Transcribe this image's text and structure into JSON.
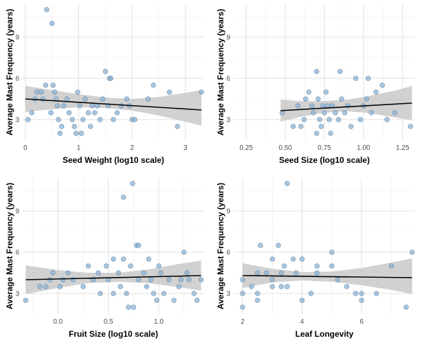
{
  "colors": {
    "point_fill": "#8fb3d1",
    "point_stroke": "#5d88ad",
    "ribbon": "#c9c9c9",
    "line": "#000000",
    "grid": "#d9d9d9"
  },
  "chart_data": [
    {
      "type": "scatter",
      "xlabel": "Seed Weight (log10 scale)",
      "ylabel": "Average Mast Frequency (years)",
      "xlim": [
        -0.05,
        3.35
      ],
      "ylim": [
        1.5,
        11.4
      ],
      "xticks": [
        0,
        1,
        2,
        3
      ],
      "yticks": [
        3,
        6,
        9
      ],
      "grid": true,
      "points": [
        [
          0.05,
          3.0
        ],
        [
          0.12,
          3.5
        ],
        [
          0.18,
          4.5
        ],
        [
          0.22,
          5.0
        ],
        [
          0.3,
          5.0
        ],
        [
          0.33,
          4.5
        ],
        [
          0.38,
          5.5
        ],
        [
          0.4,
          11.0
        ],
        [
          0.48,
          3.5
        ],
        [
          0.5,
          10.0
        ],
        [
          0.52,
          5.5
        ],
        [
          0.55,
          5.0
        ],
        [
          0.58,
          4.5
        ],
        [
          0.6,
          4.0
        ],
        [
          0.62,
          3.0
        ],
        [
          0.65,
          2.0
        ],
        [
          0.68,
          2.5
        ],
        [
          0.72,
          4.0
        ],
        [
          0.78,
          4.5
        ],
        [
          0.82,
          3.5
        ],
        [
          0.88,
          3.0
        ],
        [
          0.92,
          2.5
        ],
        [
          0.95,
          2.0
        ],
        [
          0.98,
          5.0
        ],
        [
          1.02,
          4.0
        ],
        [
          1.05,
          2.0
        ],
        [
          1.08,
          3.0
        ],
        [
          1.12,
          4.5
        ],
        [
          1.18,
          3.5
        ],
        [
          1.22,
          2.5
        ],
        [
          1.25,
          4.0
        ],
        [
          1.3,
          3.5
        ],
        [
          1.35,
          4.0
        ],
        [
          1.4,
          3.0
        ],
        [
          1.45,
          4.5
        ],
        [
          1.5,
          6.5
        ],
        [
          1.55,
          4.0
        ],
        [
          1.58,
          6.0
        ],
        [
          1.6,
          6.0
        ],
        [
          1.65,
          3.0
        ],
        [
          1.72,
          3.5
        ],
        [
          1.8,
          4.0
        ],
        [
          1.9,
          4.5
        ],
        [
          1.95,
          4.0
        ],
        [
          2.0,
          3.0
        ],
        [
          2.05,
          3.0
        ],
        [
          2.3,
          4.5
        ],
        [
          2.4,
          5.5
        ],
        [
          2.7,
          5.0
        ],
        [
          2.85,
          2.5
        ],
        [
          3.3,
          5.0
        ]
      ],
      "fit": {
        "x": [
          0.0,
          3.3
        ],
        "y": [
          4.5,
          3.7
        ]
      },
      "band": {
        "x": [
          0.0,
          0.5,
          1.0,
          1.5,
          2.0,
          2.5,
          3.0,
          3.3
        ],
        "lower": [
          3.55,
          3.75,
          3.9,
          3.85,
          3.65,
          3.3,
          2.85,
          2.55
        ],
        "upper": [
          5.45,
          5.15,
          4.85,
          4.6,
          4.5,
          4.65,
          4.95,
          5.15
        ]
      }
    },
    {
      "type": "scatter",
      "xlabel": "Seed Size (log10 scale)",
      "ylabel": "Average Mast Frequency (years)",
      "xlim": [
        0.17,
        1.33
      ],
      "ylim": [
        1.5,
        11.4
      ],
      "xticks": [
        0.25,
        0.5,
        0.75,
        1.0,
        1.25
      ],
      "xticklabels": [
        "0.25",
        "0.50",
        "0.75",
        "1.00",
        "1.25"
      ],
      "yticks": [
        3,
        6,
        9
      ],
      "grid": true,
      "points": [
        [
          0.48,
          3.5
        ],
        [
          0.55,
          2.5
        ],
        [
          0.58,
          4.0
        ],
        [
          0.6,
          2.5
        ],
        [
          0.62,
          3.0
        ],
        [
          0.63,
          4.5
        ],
        [
          0.65,
          5.0
        ],
        [
          0.67,
          4.0
        ],
        [
          0.68,
          3.5
        ],
        [
          0.7,
          2.0
        ],
        [
          0.7,
          6.5
        ],
        [
          0.71,
          4.5
        ],
        [
          0.72,
          3.0
        ],
        [
          0.73,
          2.5
        ],
        [
          0.74,
          4.0
        ],
        [
          0.75,
          3.5
        ],
        [
          0.76,
          5.0
        ],
        [
          0.77,
          4.0
        ],
        [
          0.78,
          3.0
        ],
        [
          0.79,
          2.0
        ],
        [
          0.8,
          4.0
        ],
        [
          0.82,
          3.5
        ],
        [
          0.84,
          3.0
        ],
        [
          0.85,
          6.5
        ],
        [
          0.86,
          4.5
        ],
        [
          0.88,
          3.5
        ],
        [
          0.9,
          4.0
        ],
        [
          0.92,
          2.5
        ],
        [
          0.95,
          6.0
        ],
        [
          0.98,
          3.0
        ],
        [
          1.0,
          4.0
        ],
        [
          1.02,
          4.5
        ],
        [
          1.03,
          6.0
        ],
        [
          1.05,
          3.5
        ],
        [
          1.08,
          5.0
        ],
        [
          1.12,
          5.5
        ],
        [
          1.15,
          3.0
        ],
        [
          1.2,
          3.5
        ],
        [
          1.3,
          2.5
        ]
      ],
      "fit": {
        "x": [
          0.47,
          1.31
        ],
        "y": [
          3.65,
          4.2
        ]
      },
      "band": {
        "x": [
          0.47,
          0.6,
          0.75,
          0.9,
          1.05,
          1.2,
          1.31
        ],
        "lower": [
          2.85,
          3.2,
          3.5,
          3.6,
          3.45,
          3.15,
          2.95
        ],
        "upper": [
          4.45,
          4.35,
          4.35,
          4.45,
          4.75,
          5.1,
          5.45
        ]
      }
    },
    {
      "type": "scatter",
      "xlabel": "Fruit Size (log10 scale)",
      "ylabel": "Average Mast Frequency (years)",
      "xlim": [
        -0.35,
        1.45
      ],
      "ylim": [
        1.5,
        11.4
      ],
      "xticks": [
        0.0,
        0.5,
        1.0
      ],
      "xticklabels": [
        "0.0",
        "0.5",
        "1.0"
      ],
      "yticks": [
        3,
        6,
        9
      ],
      "grid": true,
      "points": [
        [
          -0.32,
          2.5
        ],
        [
          -0.18,
          3.5
        ],
        [
          -0.12,
          3.5
        ],
        [
          -0.08,
          4.0
        ],
        [
          -0.05,
          4.5
        ],
        [
          0.02,
          3.5
        ],
        [
          0.05,
          4.0
        ],
        [
          0.1,
          4.5
        ],
        [
          0.15,
          4.0
        ],
        [
          0.25,
          3.5
        ],
        [
          0.3,
          5.0
        ],
        [
          0.35,
          4.0
        ],
        [
          0.4,
          4.5
        ],
        [
          0.42,
          3.0
        ],
        [
          0.48,
          5.0
        ],
        [
          0.5,
          4.0
        ],
        [
          0.55,
          3.0
        ],
        [
          0.55,
          5.5
        ],
        [
          0.6,
          4.5
        ],
        [
          0.62,
          3.5
        ],
        [
          0.65,
          5.5
        ],
        [
          0.65,
          10.0
        ],
        [
          0.68,
          3.0
        ],
        [
          0.7,
          2.0
        ],
        [
          0.72,
          5.0
        ],
        [
          0.74,
          11.0
        ],
        [
          0.75,
          2.0
        ],
        [
          0.78,
          6.5
        ],
        [
          0.8,
          6.5
        ],
        [
          0.8,
          4.0
        ],
        [
          0.85,
          4.5
        ],
        [
          0.88,
          3.5
        ],
        [
          0.9,
          5.5
        ],
        [
          0.92,
          4.0
        ],
        [
          0.95,
          3.0
        ],
        [
          0.98,
          2.5
        ],
        [
          1.0,
          5.0
        ],
        [
          1.02,
          4.5
        ],
        [
          1.05,
          3.0
        ],
        [
          1.1,
          4.0
        ],
        [
          1.15,
          2.5
        ],
        [
          1.2,
          3.5
        ],
        [
          1.22,
          4.0
        ],
        [
          1.25,
          6.0
        ],
        [
          1.28,
          4.5
        ],
        [
          1.3,
          4.0
        ],
        [
          1.35,
          3.0
        ],
        [
          1.38,
          2.5
        ],
        [
          1.42,
          4.0
        ]
      ],
      "fit": {
        "x": [
          -0.32,
          1.42
        ],
        "y": [
          4.0,
          4.3
        ]
      },
      "band": {
        "x": [
          -0.32,
          0.0,
          0.3,
          0.6,
          0.9,
          1.2,
          1.42
        ],
        "lower": [
          2.95,
          3.4,
          3.75,
          3.85,
          3.75,
          3.45,
          3.2
        ],
        "upper": [
          5.05,
          4.7,
          4.5,
          4.5,
          4.75,
          5.15,
          5.4
        ]
      }
    },
    {
      "type": "scatter",
      "xlabel": "Leaf Longevity",
      "ylabel": "Average Mast Frequency (years)",
      "xlim": [
        1.7,
        7.8
      ],
      "ylim": [
        1.5,
        11.4
      ],
      "xticks": [
        2,
        4,
        6
      ],
      "yticks": [
        3,
        6,
        9
      ],
      "grid": true,
      "points": [
        [
          2.0,
          2.0
        ],
        [
          2.0,
          3.0
        ],
        [
          2.0,
          4.0
        ],
        [
          2.3,
          3.5
        ],
        [
          2.5,
          4.5
        ],
        [
          2.5,
          3.0
        ],
        [
          2.5,
          2.5
        ],
        [
          2.6,
          6.5
        ],
        [
          2.8,
          4.5
        ],
        [
          3.0,
          4.0
        ],
        [
          3.0,
          5.5
        ],
        [
          3.0,
          3.5
        ],
        [
          3.2,
          6.5
        ],
        [
          3.3,
          3.5
        ],
        [
          3.3,
          4.5
        ],
        [
          3.4,
          5.0
        ],
        [
          3.5,
          3.5
        ],
        [
          3.5,
          11.0
        ],
        [
          3.7,
          5.5
        ],
        [
          3.8,
          4.5
        ],
        [
          4.0,
          5.5
        ],
        [
          4.0,
          2.5
        ],
        [
          4.3,
          3.0
        ],
        [
          4.5,
          5.0
        ],
        [
          4.5,
          4.5
        ],
        [
          5.0,
          5.0
        ],
        [
          5.0,
          6.0
        ],
        [
          5.2,
          4.0
        ],
        [
          5.5,
          3.5
        ],
        [
          5.8,
          3.0
        ],
        [
          6.0,
          3.0
        ],
        [
          6.0,
          2.5
        ],
        [
          6.5,
          3.0
        ],
        [
          7.0,
          5.0
        ],
        [
          7.5,
          2.0
        ],
        [
          7.7,
          6.0
        ]
      ],
      "fit": {
        "x": [
          2.0,
          7.7
        ],
        "y": [
          4.3,
          4.15
        ]
      },
      "band": {
        "x": [
          2.0,
          3.0,
          4.0,
          5.0,
          6.0,
          7.0,
          7.7
        ],
        "lower": [
          3.4,
          3.8,
          3.95,
          3.85,
          3.6,
          3.25,
          2.95
        ],
        "upper": [
          5.2,
          4.8,
          4.55,
          4.6,
          4.85,
          5.25,
          5.55
        ]
      }
    }
  ]
}
